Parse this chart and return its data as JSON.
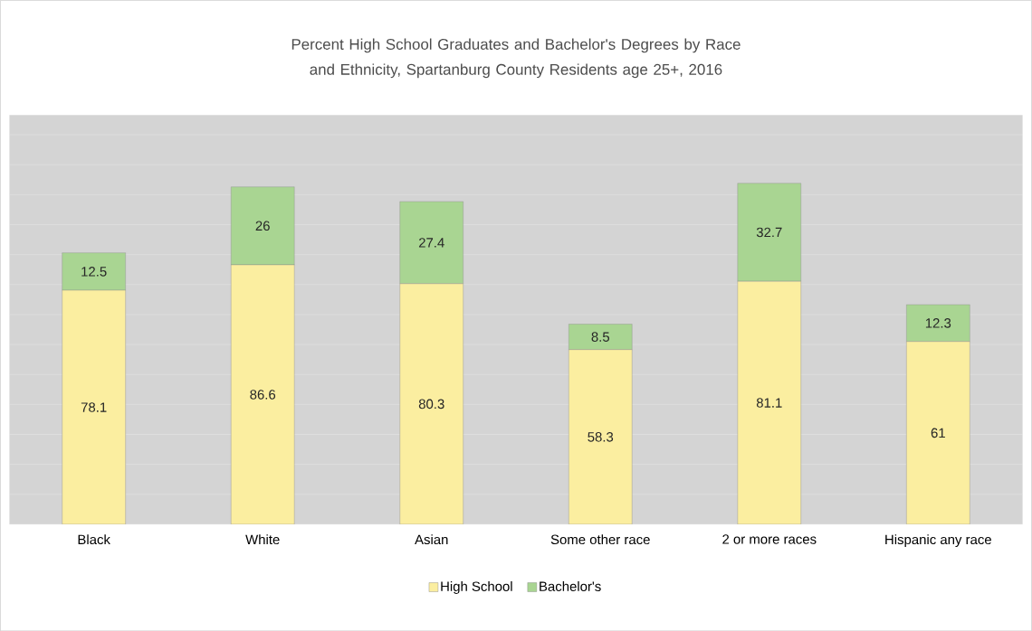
{
  "chart_data": {
    "type": "bar",
    "stacked": true,
    "title": "Percent  High School Graduates and  Bachelor's Degrees by Race and Ethnicity, Spartanburg County Residents age 25+, 2016",
    "categories": [
      "Black",
      "White",
      "Asian",
      "Some other race",
      "2 or more races",
      "Hispanic any race"
    ],
    "series": [
      {
        "name": "High School",
        "color": "#fbeea0",
        "values": [
          78.1,
          86.6,
          80.3,
          58.3,
          81.1,
          61
        ]
      },
      {
        "name": "Bachelor's",
        "color": "#a9d592",
        "values": [
          12.5,
          26,
          27.4,
          8.5,
          32.7,
          12.3
        ]
      }
    ],
    "tick_labels": "x",
    "grid": "y",
    "data_labels": true,
    "legend": "bottom"
  }
}
